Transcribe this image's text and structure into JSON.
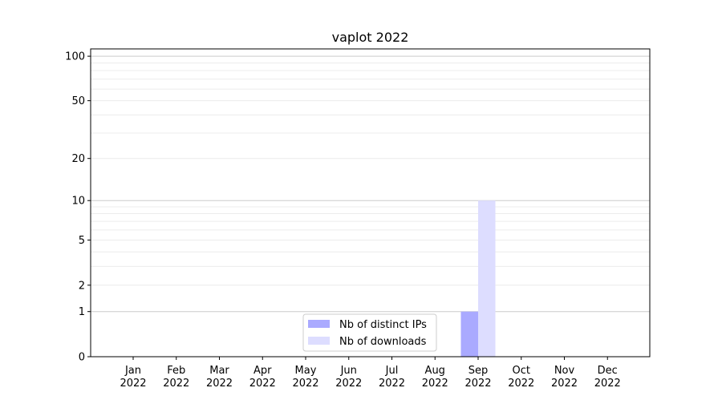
{
  "chart_data": {
    "type": "bar",
    "title": "vaplot 2022",
    "xlabel": "",
    "ylabel": "",
    "y_scale": "log(1+y)",
    "ylim": [
      0,
      112
    ],
    "y_ticks": [
      0,
      1,
      2,
      5,
      10,
      20,
      50,
      100
    ],
    "y_tick_labels": [
      "0",
      "1",
      "2",
      "5",
      "10",
      "20",
      "50",
      "100"
    ],
    "grid": true,
    "legend_position": "bottom-center",
    "categories": [
      [
        "Jan",
        "2022"
      ],
      [
        "Feb",
        "2022"
      ],
      [
        "Mar",
        "2022"
      ],
      [
        "Apr",
        "2022"
      ],
      [
        "May",
        "2022"
      ],
      [
        "Jun",
        "2022"
      ],
      [
        "Jul",
        "2022"
      ],
      [
        "Aug",
        "2022"
      ],
      [
        "Sep",
        "2022"
      ],
      [
        "Oct",
        "2022"
      ],
      [
        "Nov",
        "2022"
      ],
      [
        "Dec",
        "2022"
      ]
    ],
    "series": [
      {
        "name": "Nb of distinct IPs",
        "color": "#aaaaff",
        "values": [
          0,
          0,
          0,
          0,
          0,
          0,
          0,
          0,
          1,
          0,
          0,
          0
        ]
      },
      {
        "name": "Nb of downloads",
        "color": "#ddddff",
        "values": [
          0,
          0,
          0,
          0,
          0,
          0,
          0,
          0,
          10,
          0,
          0,
          0
        ]
      }
    ]
  }
}
